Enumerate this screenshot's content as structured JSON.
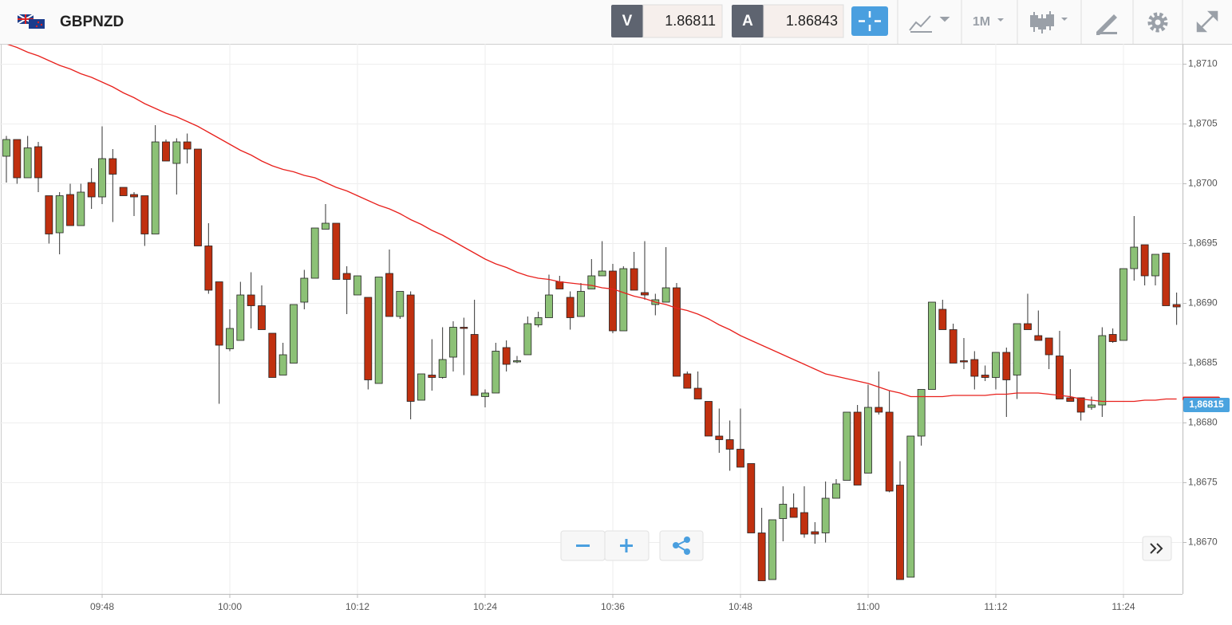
{
  "toolbar": {
    "symbol": "GBPNZD",
    "sell": {
      "label": "V",
      "price": "1.86811"
    },
    "buy": {
      "label": "A",
      "price": "1.86843"
    },
    "timeframe": "1M"
  },
  "chart_data": {
    "type": "candlestick",
    "categories": [
      null,
      null,
      null,
      null,
      null,
      null,
      null,
      null,
      null,
      "09:48",
      null,
      null,
      null,
      null,
      null,
      null,
      null,
      null,
      null,
      null,
      null,
      "10:00",
      null,
      null,
      null,
      null,
      null,
      null,
      null,
      null,
      null,
      null,
      null,
      "10:12",
      null,
      null,
      null,
      null,
      null,
      null,
      null,
      null,
      null,
      null,
      null,
      "10:24",
      null,
      null,
      null,
      null,
      null,
      null,
      null,
      null,
      null,
      null,
      null,
      "10:36",
      null,
      null,
      null,
      null,
      null,
      null,
      null,
      null,
      null,
      null,
      null,
      "10:48",
      null,
      null,
      null,
      null,
      null,
      null,
      null,
      null,
      null,
      null,
      null,
      "11:00",
      null,
      null,
      null,
      null,
      null,
      null,
      null,
      null,
      null,
      null,
      null,
      "11:12",
      null,
      null,
      null,
      null,
      null,
      null,
      null,
      null,
      null,
      null,
      null,
      "11:24",
      null,
      null,
      null,
      null,
      null
    ],
    "open": [
      1.87023,
      1.87037,
      1.87005,
      1.87031,
      1.8699,
      1.86959,
      1.86991,
      1.86965,
      1.87001,
      1.86989,
      1.87021,
      1.86997,
      1.86991,
      1.8699,
      1.86958,
      1.87035,
      1.87017,
      1.87035,
      1.87029,
      1.86948,
      1.86918,
      1.86862,
      1.86869,
      1.86907,
      1.86898,
      1.86875,
      1.8684,
      1.8685,
      1.86901,
      1.86921,
      1.86962,
      1.86967,
      1.86925,
      1.86907,
      1.86905,
      1.86833,
      1.86925,
      1.86889,
      1.86907,
      1.86819,
      1.8684,
      1.86838,
      1.86855,
      1.8688,
      1.86874,
      1.86822,
      1.86825,
      1.86863,
      1.86851,
      1.86857,
      1.86882,
      1.86888,
      1.86918,
      1.86905,
      1.86889,
      1.86912,
      1.86923,
      1.86927,
      1.86877,
      1.86929,
      1.86909,
      1.86899,
      1.86901,
      1.86913,
      1.86841,
      1.86829,
      1.86818,
      1.86789,
      1.86786,
      1.86778,
      1.86766,
      1.86708,
      1.86669,
      1.8672,
      1.86729,
      1.86725,
      1.86709,
      1.86708,
      1.86737,
      1.86752,
      1.86809,
      1.86758,
      1.86813,
      1.86809,
      1.86748,
      1.86671,
      1.86789,
      1.86828,
      1.86895,
      1.86878,
      1.86852,
      1.86853,
      1.8684,
      1.86838,
      1.86859,
      1.8684,
      1.86883,
      1.86873,
      1.86871,
      1.86856,
      1.86821,
      1.86821,
      1.86813,
      1.86815,
      1.86874,
      1.86869,
      1.86929,
      1.86949,
      1.86923,
      1.86942,
      1.86899
    ],
    "high": [
      1.8704,
      1.87037,
      1.8704,
      1.87035,
      1.8699,
      1.86993,
      1.87,
      1.87,
      1.87013,
      1.87048,
      1.87029,
      1.86997,
      1.86993,
      1.8699,
      1.87049,
      1.87037,
      1.87038,
      1.87042,
      1.87029,
      1.86967,
      1.86918,
      1.86895,
      1.86918,
      1.86926,
      1.86915,
      1.86875,
      1.86867,
      1.86899,
      1.86928,
      1.86963,
      1.86983,
      1.86967,
      1.86931,
      1.86923,
      1.86905,
      1.86922,
      1.86945,
      1.8691,
      1.8691,
      1.86841,
      1.8687,
      1.8688,
      1.86885,
      1.86888,
      1.86903,
      1.86828,
      1.86867,
      1.86869,
      1.86856,
      1.86889,
      1.86893,
      1.86924,
      1.86923,
      1.8691,
      1.86917,
      1.86937,
      1.86952,
      1.86933,
      1.86931,
      1.86943,
      1.86952,
      1.86908,
      1.86947,
      1.86917,
      1.86843,
      1.86843,
      1.86818,
      1.86812,
      1.86802,
      1.86812,
      1.86766,
      1.86729,
      1.86719,
      1.86747,
      1.86741,
      1.86747,
      1.86717,
      1.86751,
      1.86753,
      1.86809,
      1.86815,
      1.86832,
      1.86843,
      1.86827,
      1.86768,
      1.86789,
      1.86828,
      1.86901,
      1.86903,
      1.86883,
      1.86871,
      1.8686,
      1.86848,
      1.86859,
      1.86863,
      1.86883,
      1.86908,
      1.86894,
      1.86871,
      1.86877,
      1.86845,
      1.86821,
      1.86822,
      1.8688,
      1.86879,
      1.86929,
      1.86973,
      1.86949,
      1.86941,
      1.86942,
      1.86909
    ],
    "low": [
      1.87001,
      1.87,
      1.87005,
      1.86993,
      1.8695,
      1.86941,
      1.86965,
      1.86965,
      1.86979,
      1.86983,
      1.86968,
      1.8699,
      1.86973,
      1.86948,
      1.86958,
      1.87019,
      1.86991,
      1.87017,
      1.86948,
      1.86908,
      1.86816,
      1.8686,
      1.86869,
      1.86879,
      1.86878,
      1.86838,
      1.8684,
      1.8685,
      1.86895,
      1.86921,
      1.86962,
      1.8692,
      1.86891,
      1.86907,
      1.86828,
      1.86833,
      1.86889,
      1.86887,
      1.86803,
      1.86819,
      1.86827,
      1.86837,
      1.86843,
      1.8684,
      1.86823,
      1.86813,
      1.86825,
      1.86843,
      1.8685,
      1.86857,
      1.8688,
      1.86888,
      1.86912,
      1.86878,
      1.86889,
      1.86912,
      1.86923,
      1.86875,
      1.86877,
      1.86911,
      1.86903,
      1.8689,
      1.86901,
      1.86839,
      1.86829,
      1.8682,
      1.86789,
      1.86775,
      1.8676,
      1.86763,
      1.86708,
      1.86668,
      1.86669,
      1.86701,
      1.86721,
      1.86704,
      1.86699,
      1.867,
      1.86737,
      1.86752,
      1.86748,
      1.86758,
      1.86807,
      1.86742,
      1.86669,
      1.86671,
      1.86781,
      1.86828,
      1.86878,
      1.8685,
      1.86845,
      1.86828,
      1.86835,
      1.86828,
      1.86805,
      1.8682,
      1.86878,
      1.86869,
      1.86845,
      1.8682,
      1.86818,
      1.86802,
      1.86811,
      1.86805,
      1.86867,
      1.86869,
      1.86919,
      1.86915,
      1.86915,
      1.86898,
      1.86882
    ],
    "close": [
      1.87037,
      1.87005,
      1.8703,
      1.87005,
      1.86958,
      1.8699,
      1.86965,
      1.86993,
      1.86989,
      1.87021,
      1.87008,
      1.8699,
      1.86989,
      1.86958,
      1.87035,
      1.87019,
      1.87035,
      1.87029,
      1.86948,
      1.86911,
      1.86865,
      1.86879,
      1.86907,
      1.86898,
      1.86878,
      1.86838,
      1.86857,
      1.86899,
      1.86921,
      1.86963,
      1.86967,
      1.8692,
      1.8692,
      1.86923,
      1.86836,
      1.86922,
      1.86889,
      1.8691,
      1.86818,
      1.86841,
      1.86838,
      1.86853,
      1.8688,
      1.86879,
      1.86823,
      1.86825,
      1.8686,
      1.86849,
      1.86852,
      1.86883,
      1.86888,
      1.86907,
      1.86912,
      1.86888,
      1.8691,
      1.86923,
      1.86927,
      1.86877,
      1.86929,
      1.86911,
      1.86907,
      1.86903,
      1.86913,
      1.86839,
      1.86829,
      1.8682,
      1.86789,
      1.86786,
      1.86778,
      1.86763,
      1.86708,
      1.86668,
      1.86719,
      1.86732,
      1.86721,
      1.86707,
      1.86707,
      1.86737,
      1.86749,
      1.86809,
      1.86748,
      1.86813,
      1.86809,
      1.86743,
      1.86669,
      1.86789,
      1.86828,
      1.86901,
      1.86878,
      1.8685,
      1.86851,
      1.86839,
      1.86838,
      1.86859,
      1.86836,
      1.86883,
      1.86878,
      1.86869,
      1.86857,
      1.8682,
      1.86818,
      1.86809,
      1.86815,
      1.86873,
      1.86868,
      1.86929,
      1.86947,
      1.86923,
      1.86941,
      1.86898,
      1.86897
    ],
    "up_color": "#8cc176",
    "down_color": "#c0300f",
    "overlay": {
      "type": "line",
      "color": "#e8201c",
      "values": [
        1.87117,
        1.87114,
        1.8711,
        1.87107,
        1.87103,
        1.87099,
        1.87096,
        1.87092,
        1.87089,
        1.87085,
        1.87081,
        1.87076,
        1.87072,
        1.87067,
        1.87063,
        1.87059,
        1.87056,
        1.87052,
        1.87048,
        1.87043,
        1.87038,
        1.87033,
        1.87028,
        1.87024,
        1.87019,
        1.87015,
        1.87012,
        1.8701,
        1.87007,
        1.87005,
        1.87001,
        1.86997,
        1.86994,
        1.8699,
        1.86986,
        1.86982,
        1.86979,
        1.86975,
        1.8697,
        1.86966,
        1.86961,
        1.86957,
        1.86952,
        1.86947,
        1.86942,
        1.86937,
        1.86933,
        1.8693,
        1.86926,
        1.86923,
        1.86921,
        1.8692,
        1.86918,
        1.86917,
        1.86916,
        1.86915,
        1.86913,
        1.86912,
        1.86909,
        1.86906,
        1.86904,
        1.86901,
        1.86899,
        1.86896,
        1.86894,
        1.86891,
        1.86887,
        1.86882,
        1.86878,
        1.86873,
        1.86869,
        1.86865,
        1.86861,
        1.86857,
        1.86853,
        1.86849,
        1.86845,
        1.86841,
        1.86839,
        1.86837,
        1.86835,
        1.86833,
        1.8683,
        1.86827,
        1.86825,
        1.86822,
        1.86822,
        1.86822,
        1.86822,
        1.86823,
        1.86823,
        1.86823,
        1.86823,
        1.86824,
        1.86824,
        1.86825,
        1.86825,
        1.86825,
        1.86824,
        1.86823,
        1.86822,
        1.8682,
        1.86819,
        1.86818,
        1.86818,
        1.86818,
        1.86818,
        1.86819,
        1.86819,
        1.8682,
        1.8682
      ]
    },
    "last_price": {
      "value": 1.86815,
      "label": "1,86815"
    },
    "ylim": [
      1.86657,
      1.87117
    ],
    "yticks": [
      {
        "value": 1.871,
        "label": "1,8710"
      },
      {
        "value": 1.8705,
        "label": "1,8705"
      },
      {
        "value": 1.87,
        "label": "1,8700"
      },
      {
        "value": 1.8695,
        "label": "1,8695"
      },
      {
        "value": 1.869,
        "label": "1,8690"
      },
      {
        "value": 1.8685,
        "label": "1,8685"
      },
      {
        "value": 1.868,
        "label": "1,8680"
      },
      {
        "value": 1.8675,
        "label": "1,8675"
      },
      {
        "value": 1.867,
        "label": "1,8670"
      }
    ],
    "grid": true
  }
}
